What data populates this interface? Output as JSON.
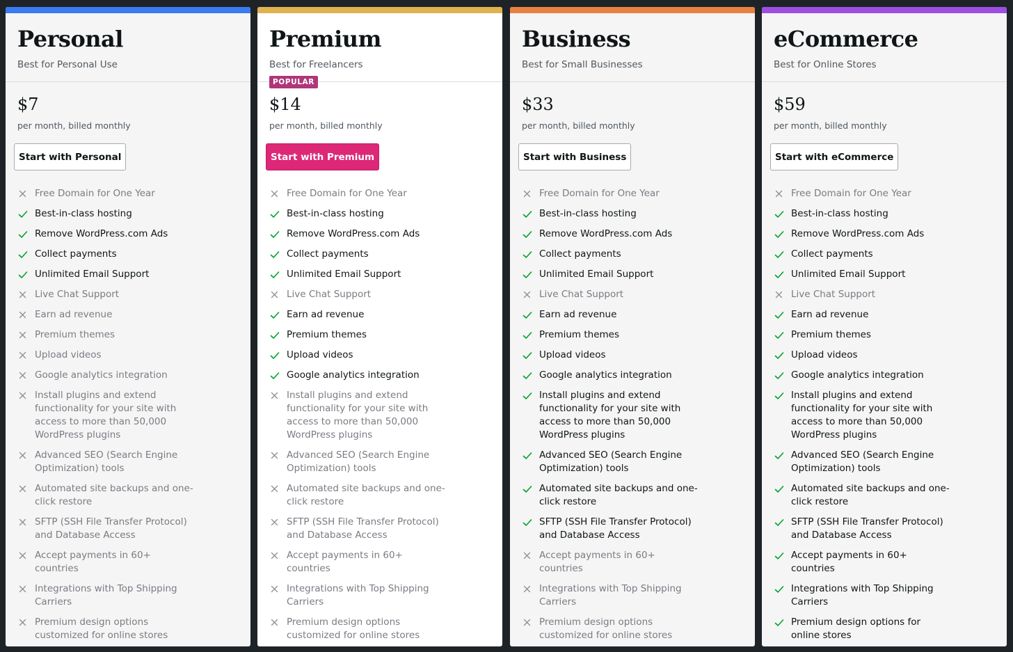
{
  "colors": {
    "personal": "#3a7bf0",
    "premium": "#e0b24f",
    "business": "#e8813f",
    "ecommerce": "#9c4fe0",
    "check": "#00a32a",
    "cross": "#8c8f94",
    "primary_button": "#dd2777"
  },
  "plans": [
    {
      "name": "Personal",
      "tagline": "Best for Personal Use",
      "price": "$7",
      "billing": "per month, billed monthly",
      "cta": "Start with Personal",
      "features": [
        {
          "text": "Free Domain for One Year",
          "included": false
        },
        {
          "text": "Best-in-class hosting",
          "included": true
        },
        {
          "text": "Remove WordPress.com Ads",
          "included": true
        },
        {
          "text": "Collect payments",
          "included": true
        },
        {
          "text": "Unlimited Email Support",
          "included": true
        },
        {
          "text": "Live Chat Support",
          "included": false
        },
        {
          "text": "Earn ad revenue",
          "included": false
        },
        {
          "text": "Premium themes",
          "included": false
        },
        {
          "text": "Upload videos",
          "included": false
        },
        {
          "text": "Google analytics integration",
          "included": false
        },
        {
          "text": "Install plugins and extend functionality for your site with access to more than 50,000 WordPress plugins",
          "included": false
        },
        {
          "text": "Advanced SEO (Search Engine Optimization) tools",
          "included": false
        },
        {
          "text": "Automated site backups and one-click restore",
          "included": false
        },
        {
          "text": "SFTP (SSH File Transfer Protocol) and Database Access",
          "included": false
        },
        {
          "text": "Accept payments in 60+ countries",
          "included": false
        },
        {
          "text": "Integrations with Top Shipping Carriers",
          "included": false
        },
        {
          "text": "Premium design options customized for online stores",
          "included": false
        }
      ]
    },
    {
      "name": "Premium",
      "tagline": "Best for Freelancers",
      "badge": "POPULAR",
      "price": "$14",
      "billing": "per month, billed monthly",
      "cta": "Start with Premium",
      "features": [
        {
          "text": "Free Domain for One Year",
          "included": false
        },
        {
          "text": "Best-in-class hosting",
          "included": true
        },
        {
          "text": "Remove WordPress.com Ads",
          "included": true
        },
        {
          "text": "Collect payments",
          "included": true
        },
        {
          "text": "Unlimited Email Support",
          "included": true
        },
        {
          "text": "Live Chat Support",
          "included": false
        },
        {
          "text": "Earn ad revenue",
          "included": true
        },
        {
          "text": "Premium themes",
          "included": true
        },
        {
          "text": "Upload videos",
          "included": true
        },
        {
          "text": "Google analytics integration",
          "included": true
        },
        {
          "text": "Install plugins and extend functionality for your site with access to more than 50,000 WordPress plugins",
          "included": false
        },
        {
          "text": "Advanced SEO (Search Engine Optimization) tools",
          "included": false
        },
        {
          "text": "Automated site backups and one-click restore",
          "included": false
        },
        {
          "text": "SFTP (SSH File Transfer Protocol) and Database Access",
          "included": false
        },
        {
          "text": "Accept payments in 60+ countries",
          "included": false
        },
        {
          "text": "Integrations with Top Shipping Carriers",
          "included": false
        },
        {
          "text": "Premium design options customized for online stores",
          "included": false
        }
      ]
    },
    {
      "name": "Business",
      "tagline": "Best for Small Businesses",
      "price": "$33",
      "billing": "per month, billed monthly",
      "cta": "Start with Business",
      "features": [
        {
          "text": "Free Domain for One Year",
          "included": false
        },
        {
          "text": "Best-in-class hosting",
          "included": true
        },
        {
          "text": "Remove WordPress.com Ads",
          "included": true
        },
        {
          "text": "Collect payments",
          "included": true
        },
        {
          "text": "Unlimited Email Support",
          "included": true
        },
        {
          "text": "Live Chat Support",
          "included": false
        },
        {
          "text": "Earn ad revenue",
          "included": true
        },
        {
          "text": "Premium themes",
          "included": true
        },
        {
          "text": "Upload videos",
          "included": true
        },
        {
          "text": "Google analytics integration",
          "included": true
        },
        {
          "text": "Install plugins and extend functionality for your site with access to more than 50,000 WordPress plugins",
          "included": true
        },
        {
          "text": "Advanced SEO (Search Engine Optimization) tools",
          "included": true
        },
        {
          "text": "Automated site backups and one-click restore",
          "included": true
        },
        {
          "text": "SFTP (SSH File Transfer Protocol) and Database Access",
          "included": true
        },
        {
          "text": "Accept payments in 60+ countries",
          "included": false
        },
        {
          "text": "Integrations with Top Shipping Carriers",
          "included": false
        },
        {
          "text": "Premium design options customized for online stores",
          "included": false
        }
      ]
    },
    {
      "name": "eCommerce",
      "tagline": "Best for Online Stores",
      "price": "$59",
      "billing": "per month, billed monthly",
      "cta": "Start with eCommerce",
      "features": [
        {
          "text": "Free Domain for One Year",
          "included": false
        },
        {
          "text": "Best-in-class hosting",
          "included": true
        },
        {
          "text": "Remove WordPress.com Ads",
          "included": true
        },
        {
          "text": "Collect payments",
          "included": true
        },
        {
          "text": "Unlimited Email Support",
          "included": true
        },
        {
          "text": "Live Chat Support",
          "included": false
        },
        {
          "text": "Earn ad revenue",
          "included": true
        },
        {
          "text": "Premium themes",
          "included": true
        },
        {
          "text": "Upload videos",
          "included": true
        },
        {
          "text": "Google analytics integration",
          "included": true
        },
        {
          "text": "Install plugins and extend functionality for your site with access to more than 50,000 WordPress plugins",
          "included": true
        },
        {
          "text": "Advanced SEO (Search Engine Optimization) tools",
          "included": true
        },
        {
          "text": "Automated site backups and one-click restore",
          "included": true
        },
        {
          "text": "SFTP (SSH File Transfer Protocol) and Database Access",
          "included": true
        },
        {
          "text": "Accept payments in 60+ countries",
          "included": true
        },
        {
          "text": "Integrations with Top Shipping Carriers",
          "included": true
        },
        {
          "text": "Premium design options for online stores",
          "included": true
        }
      ]
    }
  ]
}
